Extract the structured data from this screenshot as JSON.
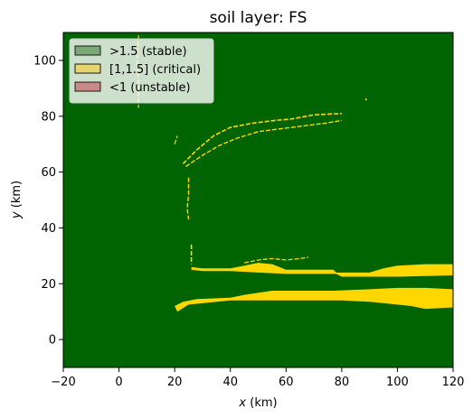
{
  "chart_data": {
    "type": "heatmap",
    "title": "soil layer: FS",
    "xlabel": "x (km)",
    "ylabel": "y (km)",
    "xlim": [
      -20,
      120
    ],
    "ylim": [
      -10,
      110
    ],
    "x_ticks": [
      -20,
      0,
      20,
      40,
      60,
      80,
      100,
      120
    ],
    "y_ticks": [
      0,
      20,
      40,
      60,
      80,
      100
    ],
    "x_tick_labels": [
      "−20",
      "0",
      "20",
      "40",
      "60",
      "80",
      "100",
      "120"
    ],
    "y_tick_labels": [
      "0",
      "20",
      "40",
      "60",
      "80",
      "100"
    ],
    "grid": false,
    "legend_position": "top-left",
    "background_class": ">1.5 (stable)",
    "classes": [
      {
        "name": ">1.5 (stable)",
        "fill": "#006400",
        "legend_fill": "#7aa874",
        "legend_edge": "#1a1a1a"
      },
      {
        "name": "[1,1.5] (critical)",
        "fill": "#ffd700",
        "legend_fill": "#e6d56e",
        "legend_edge": "#1a1a1a"
      },
      {
        "name": "<1 (unstable)",
        "fill": "#8b0000",
        "legend_fill": "#c98a87",
        "legend_edge": "#1a1a1a"
      }
    ],
    "critical_bands": [
      {
        "points": [
          [
            26,
            26
          ],
          [
            30,
            25.5
          ],
          [
            40,
            25.5
          ],
          [
            45,
            26.5
          ],
          [
            50,
            27.5
          ],
          [
            55,
            27
          ],
          [
            60,
            25
          ],
          [
            77,
            25
          ],
          [
            78,
            24
          ],
          [
            90,
            24
          ],
          [
            95,
            25.5
          ],
          [
            100,
            26.5
          ],
          [
            110,
            27
          ],
          [
            120,
            27
          ],
          [
            120,
            23
          ],
          [
            100,
            22.5
          ],
          [
            80,
            22.5
          ],
          [
            78,
            23.5
          ],
          [
            60,
            23.5
          ],
          [
            50,
            24
          ],
          [
            40,
            24.5
          ],
          [
            30,
            24.5
          ],
          [
            26,
            25
          ]
        ]
      },
      {
        "points": [
          [
            20,
            12
          ],
          [
            23,
            13.5
          ],
          [
            28,
            14.5
          ],
          [
            40,
            15
          ],
          [
            45,
            16
          ],
          [
            55,
            17.5
          ],
          [
            60,
            17.5
          ],
          [
            77,
            17.5
          ],
          [
            90,
            18
          ],
          [
            100,
            18.5
          ],
          [
            110,
            18.5
          ],
          [
            120,
            18
          ],
          [
            120,
            11.5
          ],
          [
            110,
            11
          ],
          [
            105,
            12
          ],
          [
            90,
            13.5
          ],
          [
            80,
            14
          ],
          [
            76,
            14
          ],
          [
            60,
            14
          ],
          [
            40,
            14
          ],
          [
            30,
            13
          ],
          [
            25,
            12.5
          ],
          [
            21,
            10
          ]
        ]
      }
    ],
    "critical_lines": [
      {
        "points": [
          [
            26,
            34
          ],
          [
            26,
            27
          ]
        ],
        "width": 1.6
      },
      {
        "points": [
          [
            23,
            63
          ],
          [
            28,
            68
          ],
          [
            34,
            73
          ],
          [
            40,
            76
          ],
          [
            48,
            77.5
          ],
          [
            56,
            78.5
          ],
          [
            62,
            79
          ],
          [
            70,
            80.5
          ],
          [
            80,
            81
          ]
        ],
        "width": 1.6
      },
      {
        "points": [
          [
            24,
            62
          ],
          [
            30,
            66
          ],
          [
            36,
            69.5
          ],
          [
            42,
            72
          ],
          [
            50,
            74.5
          ],
          [
            58,
            75.5
          ],
          [
            66,
            76.5
          ],
          [
            74,
            77.5
          ],
          [
            80,
            78.5
          ]
        ],
        "width": 1.4
      },
      {
        "points": [
          [
            25,
            58
          ],
          [
            25,
            52
          ],
          [
            24.5,
            47
          ],
          [
            25,
            43
          ]
        ],
        "width": 1.4
      },
      {
        "points": [
          [
            7,
            109
          ],
          [
            6.5,
            100
          ],
          [
            7,
            92
          ],
          [
            7,
            83
          ]
        ],
        "width": 1.2
      },
      {
        "points": [
          [
            20,
            70
          ],
          [
            21,
            73
          ]
        ],
        "width": 1.2
      },
      {
        "points": [
          [
            45,
            27.5
          ],
          [
            50,
            28.5
          ],
          [
            55,
            29
          ],
          [
            60,
            28.5
          ],
          [
            65,
            29
          ],
          [
            68,
            29.5
          ]
        ],
        "width": 1.3
      },
      {
        "points": [
          [
            88.5,
            86
          ],
          [
            89,
            86
          ]
        ],
        "width": 2
      }
    ]
  }
}
